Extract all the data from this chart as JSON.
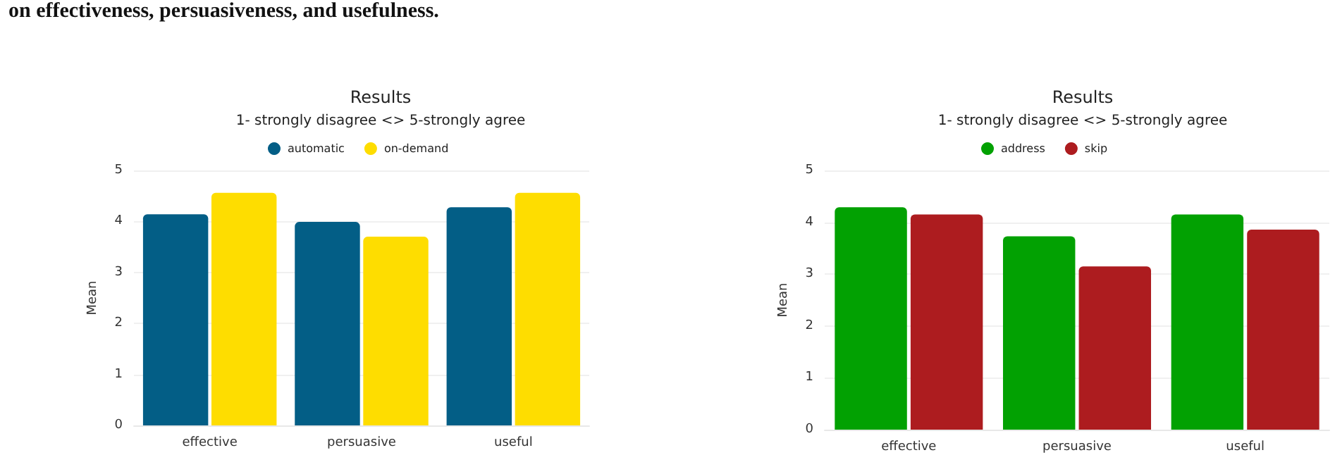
{
  "chart_data": [
    {
      "type": "bar",
      "title": "Results",
      "subtitle": "1- strongly disagree <> 5-strongly agree",
      "ylabel": "Mean",
      "annotations": [
        "on effectiveness, persuasiveness, and usefulness."
      ],
      "categories": [
        "effective",
        "persuasive",
        "useful"
      ],
      "series": [
        {
          "name": "automatic",
          "color": "#035e86",
          "values": [
            4.14,
            3.99,
            4.28
          ]
        },
        {
          "name": "on-demand",
          "color": "#fedd00",
          "values": [
            4.56,
            3.7,
            4.56
          ]
        }
      ],
      "ylim": [
        0,
        5
      ],
      "yticks": [
        0,
        1,
        2,
        3,
        4,
        5
      ],
      "grid": "y",
      "legend": "top"
    },
    {
      "type": "bar",
      "title": "Results",
      "subtitle": "1- strongly disagree <> 5-strongly agree",
      "ylabel": "Mean",
      "categories": [
        "effective",
        "persuasive",
        "useful"
      ],
      "series": [
        {
          "name": "address",
          "color": "#02a102",
          "values": [
            4.29,
            3.73,
            4.15
          ]
        },
        {
          "name": "skip",
          "color": "#ad1c1f",
          "values": [
            4.15,
            3.15,
            3.86
          ]
        }
      ],
      "ylim": [
        0,
        5
      ],
      "yticks": [
        0,
        1,
        2,
        3,
        4,
        5
      ],
      "grid": "y",
      "legend": "top"
    }
  ]
}
